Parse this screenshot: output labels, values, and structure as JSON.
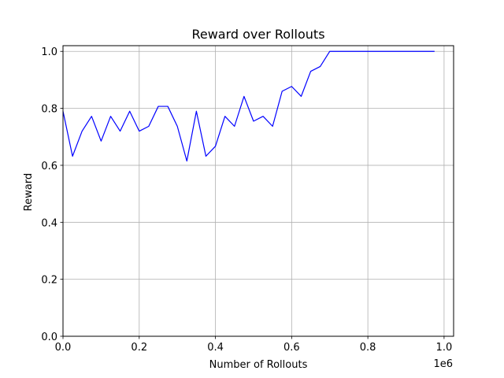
{
  "chart_data": {
    "type": "line",
    "title": "Reward over Rollouts",
    "xlabel": "Number of Rollouts",
    "ylabel": "Reward",
    "x_offset_label": "1e6",
    "xlim": [
      0,
      1025000
    ],
    "ylim": [
      0,
      1.02
    ],
    "x_tick_values": [
      0,
      200000,
      400000,
      600000,
      800000,
      1000000
    ],
    "x_tick_labels": [
      "0.0",
      "0.2",
      "0.4",
      "0.6",
      "0.8",
      "1.0"
    ],
    "y_tick_values": [
      0.0,
      0.2,
      0.4,
      0.6,
      0.8,
      1.0
    ],
    "y_tick_labels": [
      "0.0",
      "0.2",
      "0.4",
      "0.6",
      "0.8",
      "1.0"
    ],
    "grid": true,
    "series": [
      {
        "color": "#0000ff",
        "x": [
          0,
          25000,
          50000,
          75000,
          100000,
          125000,
          150000,
          175000,
          200000,
          225000,
          250000,
          275000,
          300000,
          325000,
          350000,
          375000,
          400000,
          425000,
          450000,
          475000,
          500000,
          525000,
          550000,
          575000,
          600000,
          625000,
          650000,
          675000,
          700000,
          725000,
          750000,
          775000,
          800000,
          825000,
          850000,
          875000,
          900000,
          925000,
          950000,
          975000
        ],
        "y": [
          0.79,
          0.632,
          0.72,
          0.772,
          0.685,
          0.772,
          0.72,
          0.79,
          0.72,
          0.737,
          0.807,
          0.807,
          0.737,
          0.615,
          0.79,
          0.632,
          0.667,
          0.772,
          0.737,
          0.842,
          0.755,
          0.772,
          0.737,
          0.86,
          0.877,
          0.842,
          0.93,
          0.947,
          1.0,
          1.0,
          1.0,
          1.0,
          1.0,
          1.0,
          1.0,
          1.0,
          1.0,
          1.0,
          1.0,
          1.0
        ]
      }
    ]
  }
}
